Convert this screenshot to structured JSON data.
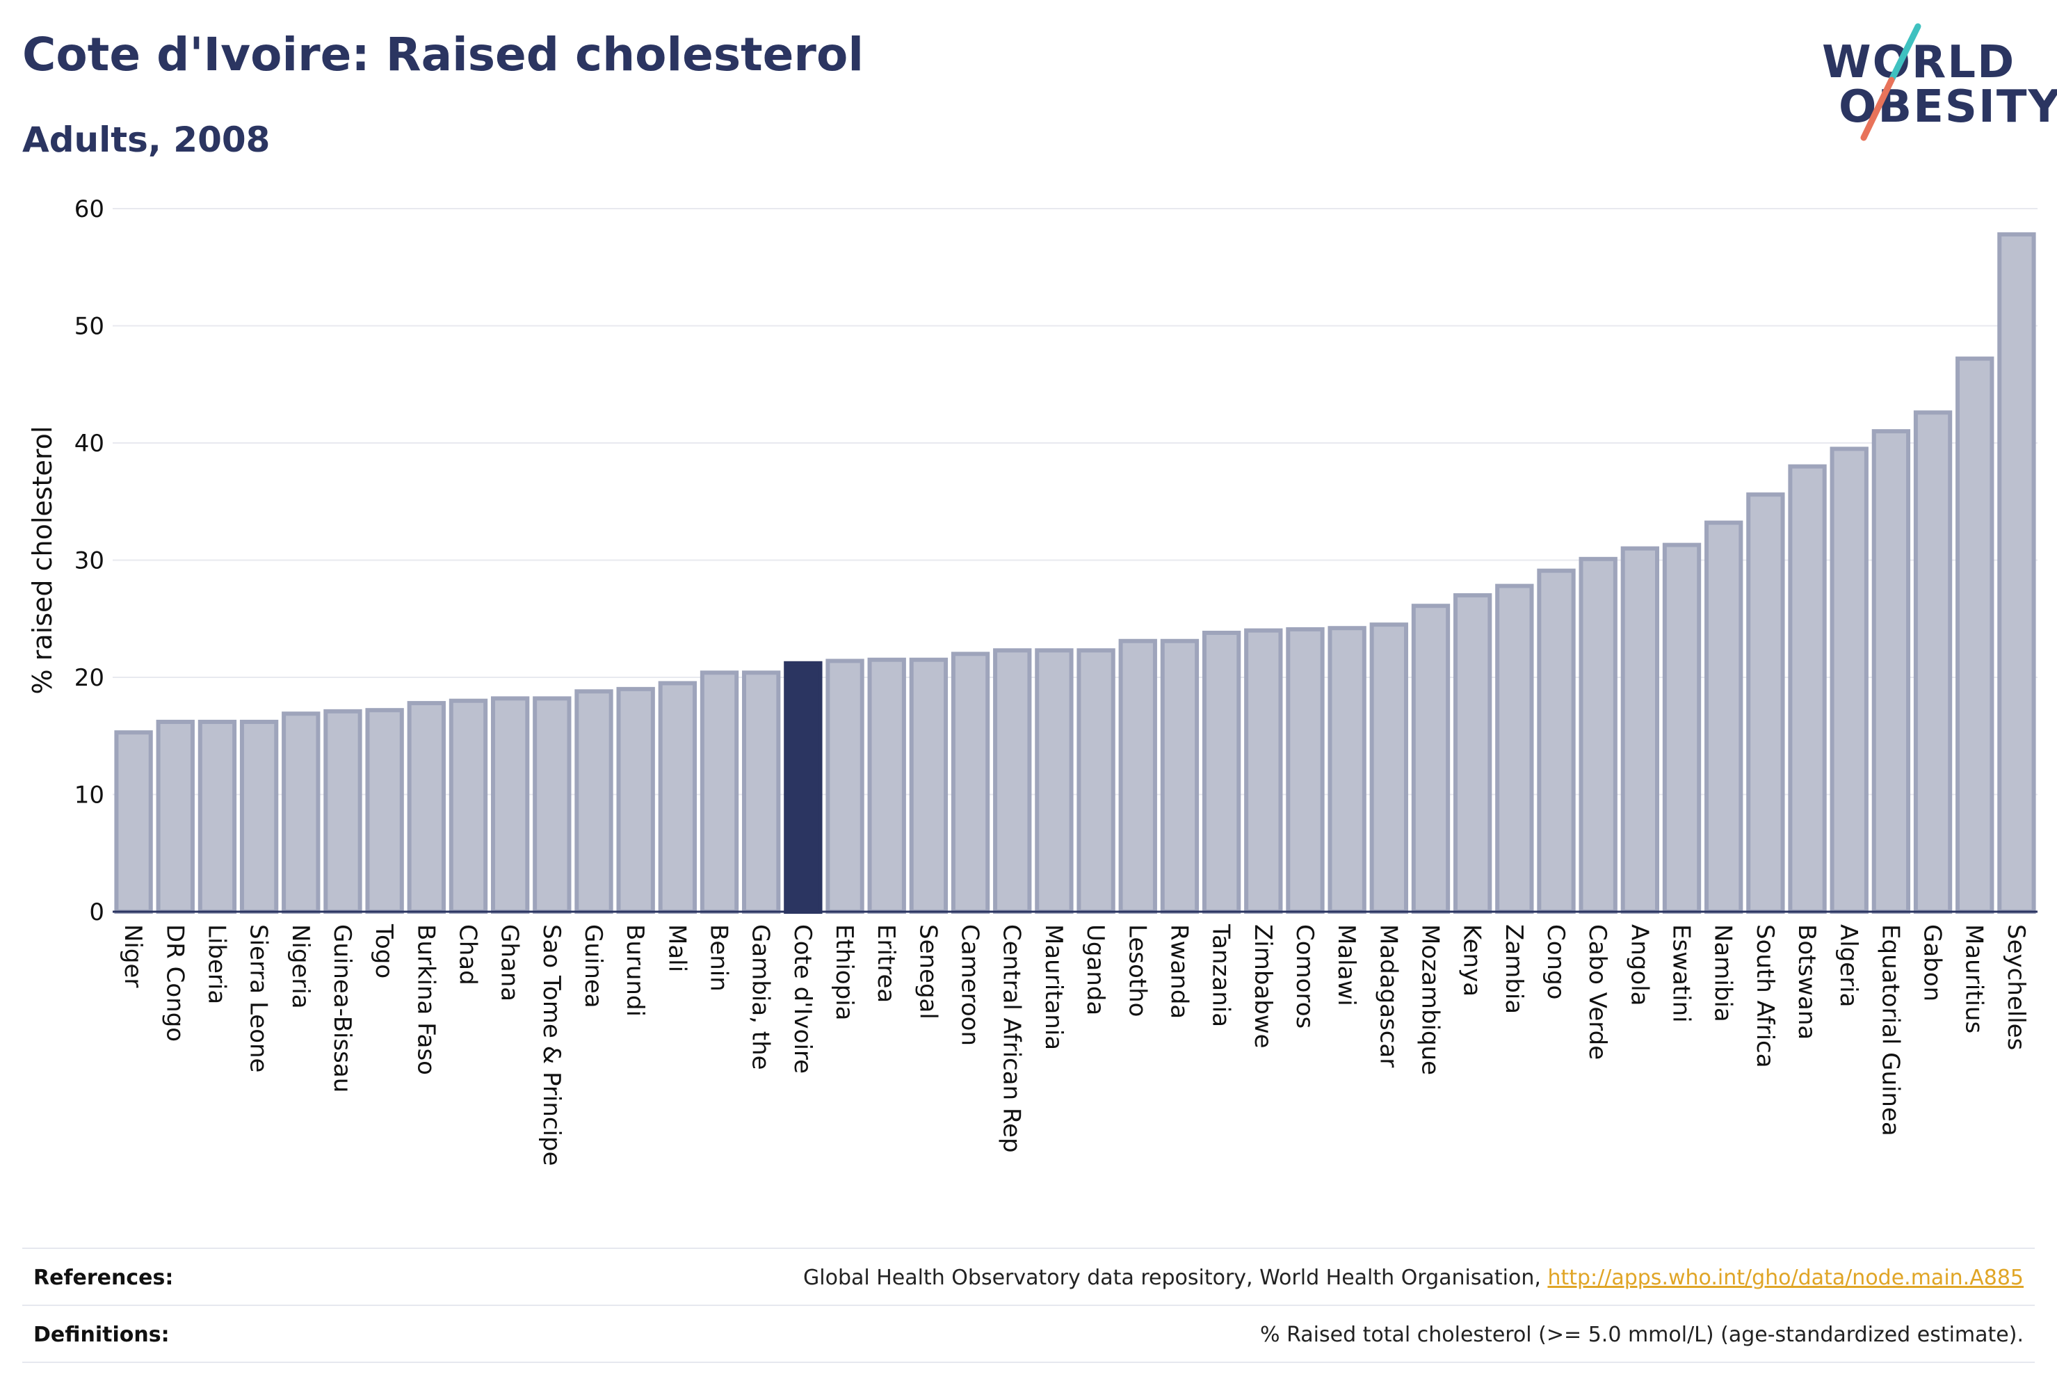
{
  "header": {
    "title": "Cote d'Ivoire: Raised cholesterol",
    "subtitle": "Adults, 2008"
  },
  "logo": {
    "line1": "WORLD",
    "line2": "OBESITY",
    "text_color": "#2b3561",
    "slash_colors": [
      "#3fc1c0",
      "#e8735a"
    ]
  },
  "colors": {
    "bar_default": "#bcc0cf",
    "bar_stroke": "#9ea4bb",
    "bar_highlight": "#2b3561",
    "grid": "#e8e9ef",
    "axis": "#2b3561"
  },
  "chart_data": {
    "type": "bar",
    "title": "Cote d'Ivoire: Raised cholesterol",
    "subtitle": "Adults, 2008",
    "xlabel": "",
    "ylabel": "% raised cholesterol",
    "ylim": [
      0,
      60
    ],
    "yticks": [
      0,
      10,
      20,
      30,
      40,
      50,
      60
    ],
    "grid": true,
    "highlight": "Cote d'Ivoire",
    "categories": [
      "Niger",
      "DR Congo",
      "Liberia",
      "Sierra Leone",
      "Nigeria",
      "Guinea-Bissau",
      "Togo",
      "Burkina Faso",
      "Chad",
      "Ghana",
      "Sao Tome & Principe",
      "Guinea",
      "Burundi",
      "Mali",
      "Benin",
      "Gambia, the",
      "Cote d'Ivoire",
      "Ethiopia",
      "Eritrea",
      "Senegal",
      "Cameroon",
      "Central African Rep",
      "Mauritania",
      "Uganda",
      "Lesotho",
      "Rwanda",
      "Tanzania",
      "Zimbabwe",
      "Comoros",
      "Malawi",
      "Madagascar",
      "Mozambique",
      "Kenya",
      "Zambia",
      "Congo",
      "Cabo Verde",
      "Angola",
      "Eswatini",
      "Namibia",
      "South Africa",
      "Botswana",
      "Algeria",
      "Equatorial Guinea",
      "Gabon",
      "Mauritius",
      "Seychelles"
    ],
    "values": [
      15.3,
      16.2,
      16.2,
      16.2,
      16.9,
      17.1,
      17.2,
      17.8,
      18.0,
      18.2,
      18.2,
      18.8,
      19.0,
      19.5,
      20.4,
      20.4,
      21.2,
      21.4,
      21.5,
      21.5,
      22.0,
      22.3,
      22.3,
      22.3,
      23.1,
      23.1,
      23.8,
      24.0,
      24.1,
      24.2,
      24.5,
      26.1,
      27.0,
      27.8,
      29.1,
      30.1,
      31.0,
      31.3,
      33.2,
      35.6,
      38.0,
      39.5,
      41.0,
      42.6,
      47.2,
      57.8
    ]
  },
  "footer": {
    "references_label": "References:",
    "references_text": "Global Health Observatory data repository, World Health Organisation, ",
    "references_link": "http://apps.who.int/gho/data/node.main.A885",
    "definitions_label": "Definitions:",
    "definitions_text": "% Raised total cholesterol (>= 5.0 mmol/L) (age-standardized estimate)."
  }
}
